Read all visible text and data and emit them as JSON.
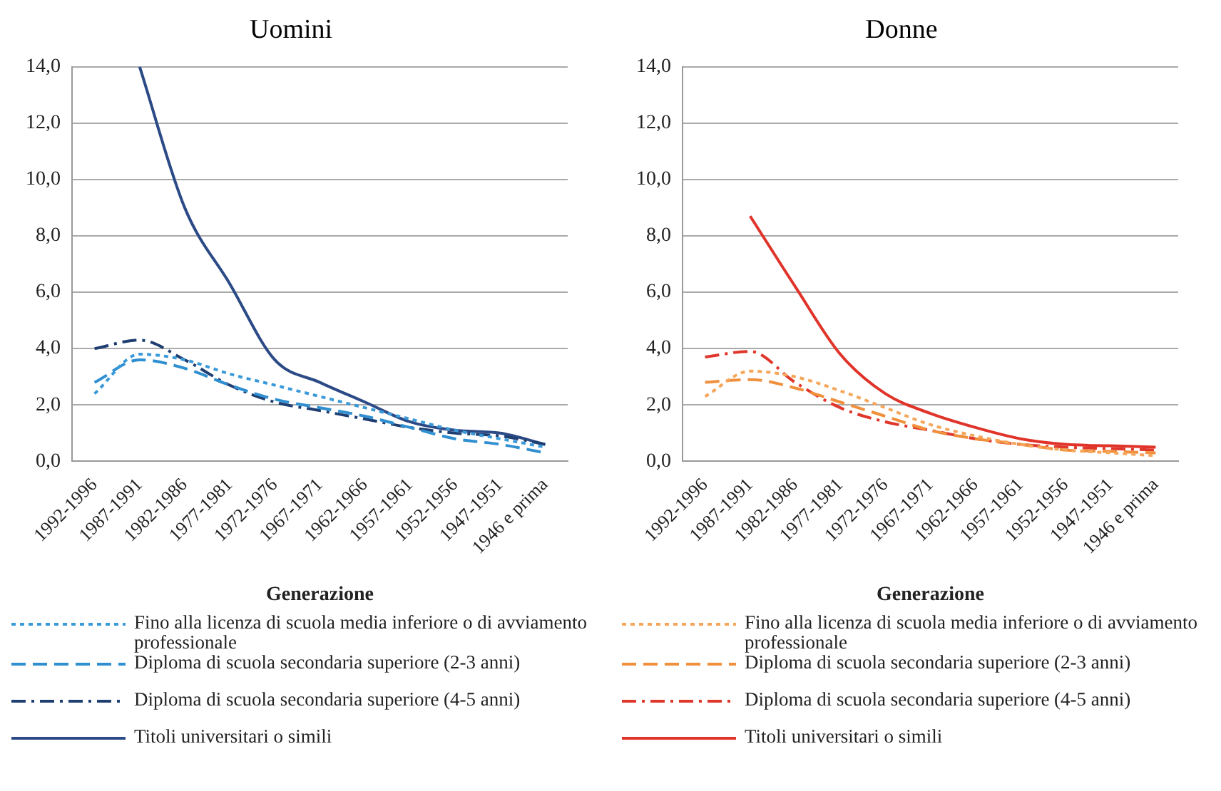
{
  "chart_data": [
    {
      "type": "line",
      "title": "Uomini",
      "xlabel": "Generazione",
      "categories": [
        "1992-1996",
        "1987-1991",
        "1982-1986",
        "1977-1981",
        "1972-1976",
        "1967-1971",
        "1962-1966",
        "1957-1961",
        "1952-1956",
        "1947-1951",
        "1946 e prima"
      ],
      "ylim": [
        0,
        14
      ],
      "yticks": [
        {
          "value": 0,
          "label": "0,0"
        },
        {
          "value": 2,
          "label": "2,0"
        },
        {
          "value": 4,
          "label": "4,0"
        },
        {
          "value": 6,
          "label": "6,0"
        },
        {
          "value": 8,
          "label": "8,0"
        },
        {
          "value": 10,
          "label": "10,0"
        },
        {
          "value": 12,
          "label": "12,0"
        },
        {
          "value": 14,
          "label": "14,0"
        }
      ],
      "grid": "y",
      "legend": "bottom",
      "marker": "none",
      "series": [
        {
          "name": "Fino alla licenza di scuola media inferiore o di avviamento professionale",
          "color": "#3a9ad9",
          "line_style": "dotted",
          "values": [
            2.4,
            3.8,
            3.6,
            3.1,
            2.7,
            2.3,
            1.9,
            1.5,
            1.1,
            0.8,
            0.5
          ]
        },
        {
          "name": "Diploma di scuola secondaria superiore (2-3 anni)",
          "color": "#2f8fd0",
          "line_style": "dashed",
          "values": [
            2.8,
            3.6,
            3.3,
            2.7,
            2.2,
            1.9,
            1.6,
            1.2,
            0.8,
            0.6,
            0.3
          ]
        },
        {
          "name": "Diploma di scuola secondaria superiore (4-5 anni)",
          "color": "#1f3f73",
          "line_style": "dashdot",
          "values": [
            4.0,
            4.3,
            3.6,
            2.7,
            2.1,
            1.8,
            1.5,
            1.2,
            1.0,
            0.9,
            0.6
          ]
        },
        {
          "name": "Titoli universitari o simili",
          "color": "#2b4a86",
          "line_style": "solid",
          "values": [
            null,
            14.0,
            9.0,
            6.3,
            3.6,
            2.8,
            2.1,
            1.4,
            1.1,
            1.0,
            0.6
          ]
        }
      ]
    },
    {
      "type": "line",
      "title": "Donne",
      "xlabel": "Generazione",
      "categories": [
        "1992-1996",
        "1987-1991",
        "1982-1986",
        "1977-1981",
        "1972-1976",
        "1967-1971",
        "1962-1966",
        "1957-1961",
        "1952-1956",
        "1947-1951",
        "1946 e prima"
      ],
      "ylim": [
        0,
        14
      ],
      "yticks": [
        {
          "value": 0,
          "label": "0,0"
        },
        {
          "value": 2,
          "label": "2,0"
        },
        {
          "value": 4,
          "label": "4,0"
        },
        {
          "value": 6,
          "label": "6,0"
        },
        {
          "value": 8,
          "label": "8,0"
        },
        {
          "value": 10,
          "label": "10,0"
        },
        {
          "value": 12,
          "label": "12,0"
        },
        {
          "value": 14,
          "label": "14,0"
        }
      ],
      "grid": "y",
      "legend": "bottom",
      "marker": "none",
      "series": [
        {
          "name": "Fino alla licenza di scuola media inferiore o di avviamento professionale",
          "color": "#f5a65b",
          "line_style": "dotted",
          "values": [
            2.3,
            3.2,
            3.0,
            2.5,
            1.9,
            1.3,
            0.9,
            0.6,
            0.4,
            0.3,
            0.2
          ]
        },
        {
          "name": "Diploma di scuola secondaria superiore (2-3 anni)",
          "color": "#f0903c",
          "line_style": "dashed",
          "values": [
            2.8,
            2.9,
            2.6,
            2.1,
            1.6,
            1.1,
            0.8,
            0.6,
            0.4,
            0.35,
            0.3
          ]
        },
        {
          "name": "Diploma di scuola secondaria superiore (4-5 anni)",
          "color": "#e0372c",
          "line_style": "dashdot",
          "values": [
            3.7,
            3.9,
            2.8,
            1.9,
            1.4,
            1.1,
            0.8,
            0.6,
            0.5,
            0.45,
            0.4
          ]
        },
        {
          "name": "Titoli universitari o simili",
          "color": "#e0342a",
          "line_style": "solid",
          "values": [
            null,
            8.7,
            6.2,
            3.8,
            2.4,
            1.7,
            1.2,
            0.8,
            0.6,
            0.55,
            0.5
          ]
        }
      ]
    }
  ]
}
